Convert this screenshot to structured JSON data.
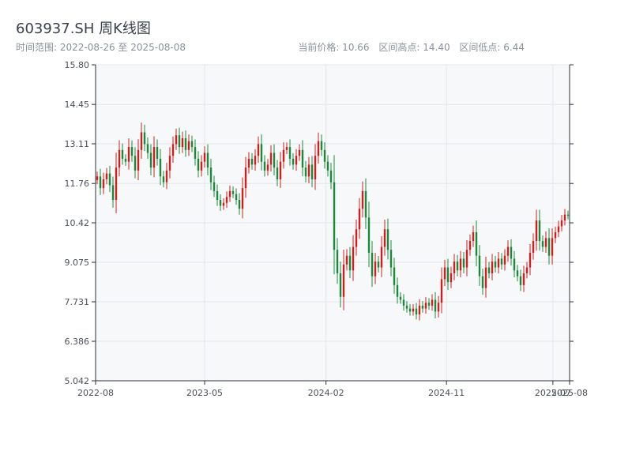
{
  "header": {
    "title": "603937.SH 周K线图",
    "range_label": "时间范围: 2022-08-26 至 2025-08-08",
    "price_label": "当前价格: 10.66",
    "high_label": "区间高点: 14.40",
    "low_label": "区间低点: 6.44"
  },
  "colors": {
    "up": "#cc1f1f",
    "down": "#1a8a3a",
    "plot_bg": "#f7f8fa",
    "grid": "#e3e6ea",
    "axis": "#2b2f36"
  },
  "chart_data": {
    "type": "candlestick",
    "title": "603937.SH 周K线图",
    "x_start": "2022-08-26",
    "x_end": "2025-08-08",
    "interval": "weekly",
    "ylim": [
      5.042,
      15.8
    ],
    "y_ticks": [
      5.042,
      6.386,
      7.731,
      9.075,
      10.42,
      11.76,
      13.11,
      14.45,
      15.8
    ],
    "y_tick_labels": [
      "5.042",
      "6.386",
      "7.731",
      "9.075",
      "10.42",
      "11.76",
      "13.11",
      "14.45",
      "15.80"
    ],
    "x_ticks": [
      {
        "date": "2022-08-26",
        "label": "2022-08"
      },
      {
        "date": "2023-05-01",
        "label": "2023-05"
      },
      {
        "date": "2024-02-01",
        "label": "2024-02"
      },
      {
        "date": "2024-11-01",
        "label": "2024-11"
      },
      {
        "date": "2025-07-01",
        "label": "2025-07"
      },
      {
        "date": "2025-08-08",
        "label": "2025-08"
      }
    ],
    "grid": true,
    "legend": "none",
    "close_series": [
      12.0,
      11.6,
      11.9,
      12.1,
      11.7,
      11.2,
      12.3,
      12.9,
      12.6,
      12.5,
      13.0,
      12.7,
      12.2,
      12.9,
      13.5,
      13.1,
      12.8,
      12.3,
      13.0,
      12.6,
      12.0,
      11.8,
      12.2,
      12.7,
      13.1,
      13.4,
      13.0,
      13.3,
      12.9,
      13.2,
      13.0,
      12.6,
      12.2,
      12.5,
      12.8,
      12.3,
      11.8,
      11.5,
      11.2,
      11.0,
      11.1,
      11.3,
      11.5,
      11.4,
      11.2,
      10.9,
      11.6,
      12.3,
      12.6,
      12.4,
      12.7,
      13.1,
      12.5,
      12.2,
      12.4,
      12.8,
      12.3,
      11.9,
      12.5,
      12.9,
      13.0,
      12.6,
      12.4,
      12.7,
      12.9,
      12.3,
      12.0,
      12.4,
      11.9,
      12.7,
      13.2,
      12.9,
      12.5,
      12.2,
      11.8,
      9.5,
      8.7,
      7.9,
      9.0,
      9.3,
      8.8,
      9.6,
      10.2,
      10.9,
      11.5,
      10.6,
      9.4,
      8.6,
      9.1,
      8.9,
      9.6,
      10.2,
      9.5,
      8.9,
      8.3,
      7.9,
      7.8,
      7.6,
      7.5,
      7.4,
      7.5,
      7.3,
      7.6,
      7.5,
      7.7,
      7.6,
      7.8,
      7.4,
      7.7,
      8.5,
      8.9,
      8.4,
      8.7,
      9.1,
      8.8,
      9.2,
      8.9,
      9.5,
      9.8,
      10.1,
      9.3,
      8.6,
      8.2,
      8.9,
      8.7,
      9.1,
      8.9,
      9.2,
      9.0,
      9.3,
      9.6,
      9.2,
      8.8,
      8.6,
      8.3,
      8.7,
      8.9,
      9.4,
      9.8,
      10.5,
      9.8,
      9.6,
      9.9,
      9.3,
      9.9,
      10.1,
      10.3,
      10.5,
      10.7,
      10.66
    ]
  }
}
